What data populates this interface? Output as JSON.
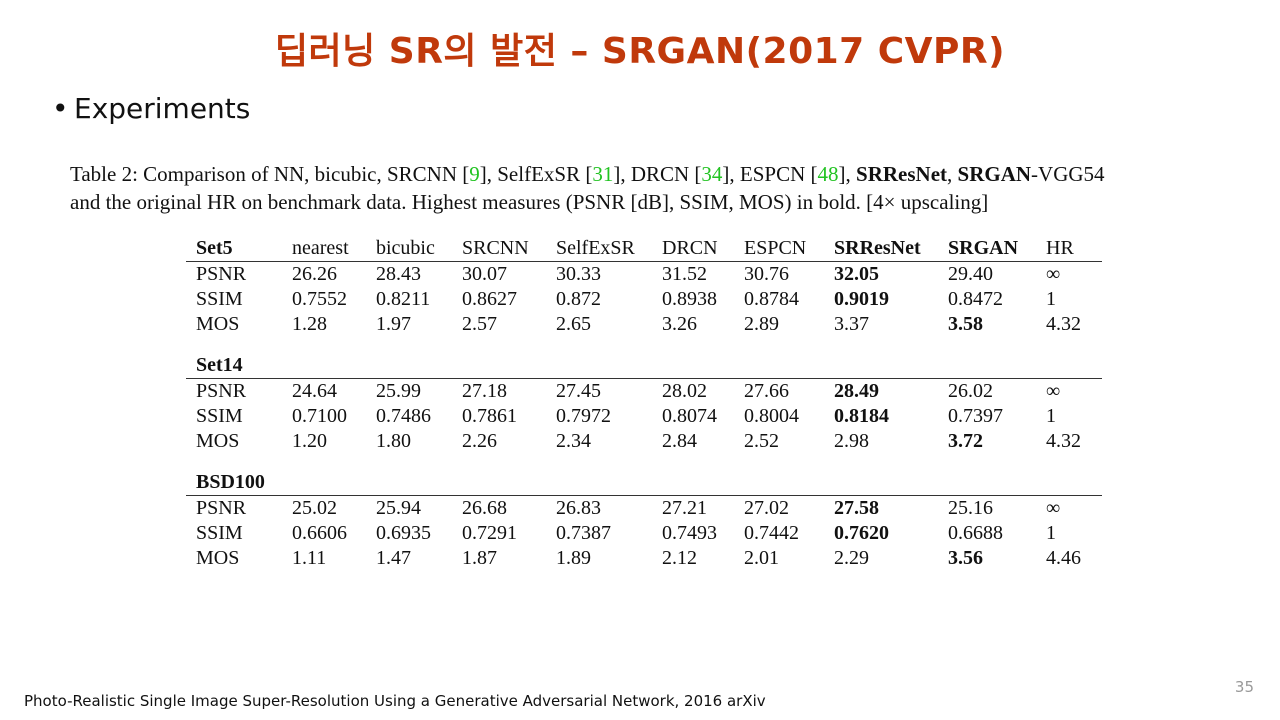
{
  "slide": {
    "title": "딥러닝 SR의 발전 – SRGAN(2017 CVPR)",
    "bullet": "Experiments",
    "footer": "Photo-Realistic Single Image Super-Resolution Using a Generative Adversarial Network, 2016 arXiv",
    "page_number": "35"
  },
  "caption": {
    "p1": "Table 2: Comparison of NN, bicubic, SRCNN [",
    "r1": "9",
    "p2": "], SelfExSR [",
    "r2": "31",
    "p3": "], DRCN [",
    "r3": "34",
    "p4": "], ESPCN [",
    "r4": "48",
    "p5": "], ",
    "b1": "SRResNet",
    "p6": ", ",
    "b2": "SRGAN",
    "p7": "-VGG54",
    "line2": "and the original HR on benchmark data. Highest measures (PSNR [dB], SSIM, MOS) in bold. [4× upscaling]"
  },
  "table": {
    "columns": [
      "nearest",
      "bicubic",
      "SRCNN",
      "SelfExSR",
      "DRCN",
      "ESPCN",
      "SRResNet",
      "SRGAN",
      "HR"
    ],
    "bold_columns": [
      "SRResNet",
      "SRGAN"
    ],
    "sections": [
      {
        "name": "Set5",
        "rows": [
          {
            "metric": "PSNR",
            "values": [
              "26.26",
              "28.43",
              "30.07",
              "30.33",
              "31.52",
              "30.76",
              "32.05",
              "29.40",
              "∞"
            ],
            "bold_index": 6
          },
          {
            "metric": "SSIM",
            "values": [
              "0.7552",
              "0.8211",
              "0.8627",
              "0.872",
              "0.8938",
              "0.8784",
              "0.9019",
              "0.8472",
              "1"
            ],
            "bold_index": 6
          },
          {
            "metric": "MOS",
            "values": [
              "1.28",
              "1.97",
              "2.57",
              "2.65",
              "3.26",
              "2.89",
              "3.37",
              "3.58",
              "4.32"
            ],
            "bold_index": 7
          }
        ]
      },
      {
        "name": "Set14",
        "rows": [
          {
            "metric": "PSNR",
            "values": [
              "24.64",
              "25.99",
              "27.18",
              "27.45",
              "28.02",
              "27.66",
              "28.49",
              "26.02",
              "∞"
            ],
            "bold_index": 6
          },
          {
            "metric": "SSIM",
            "values": [
              "0.7100",
              "0.7486",
              "0.7861",
              "0.7972",
              "0.8074",
              "0.8004",
              "0.8184",
              "0.7397",
              "1"
            ],
            "bold_index": 6
          },
          {
            "metric": "MOS",
            "values": [
              "1.20",
              "1.80",
              "2.26",
              "2.34",
              "2.84",
              "2.52",
              "2.98",
              "3.72",
              "4.32"
            ],
            "bold_index": 7
          }
        ]
      },
      {
        "name": "BSD100",
        "rows": [
          {
            "metric": "PSNR",
            "values": [
              "25.02",
              "25.94",
              "26.68",
              "26.83",
              "27.21",
              "27.02",
              "27.58",
              "25.16",
              "∞"
            ],
            "bold_index": 6
          },
          {
            "metric": "SSIM",
            "values": [
              "0.6606",
              "0.6935",
              "0.7291",
              "0.7387",
              "0.7493",
              "0.7442",
              "0.7620",
              "0.6688",
              "1"
            ],
            "bold_index": 6
          },
          {
            "metric": "MOS",
            "values": [
              "1.11",
              "1.47",
              "1.87",
              "1.89",
              "2.12",
              "2.01",
              "2.29",
              "3.56",
              "4.46"
            ],
            "bold_index": 7
          }
        ]
      }
    ]
  },
  "colors": {
    "title": "#c0390b",
    "reference_link": "#22c322",
    "page_number": "#999999"
  }
}
